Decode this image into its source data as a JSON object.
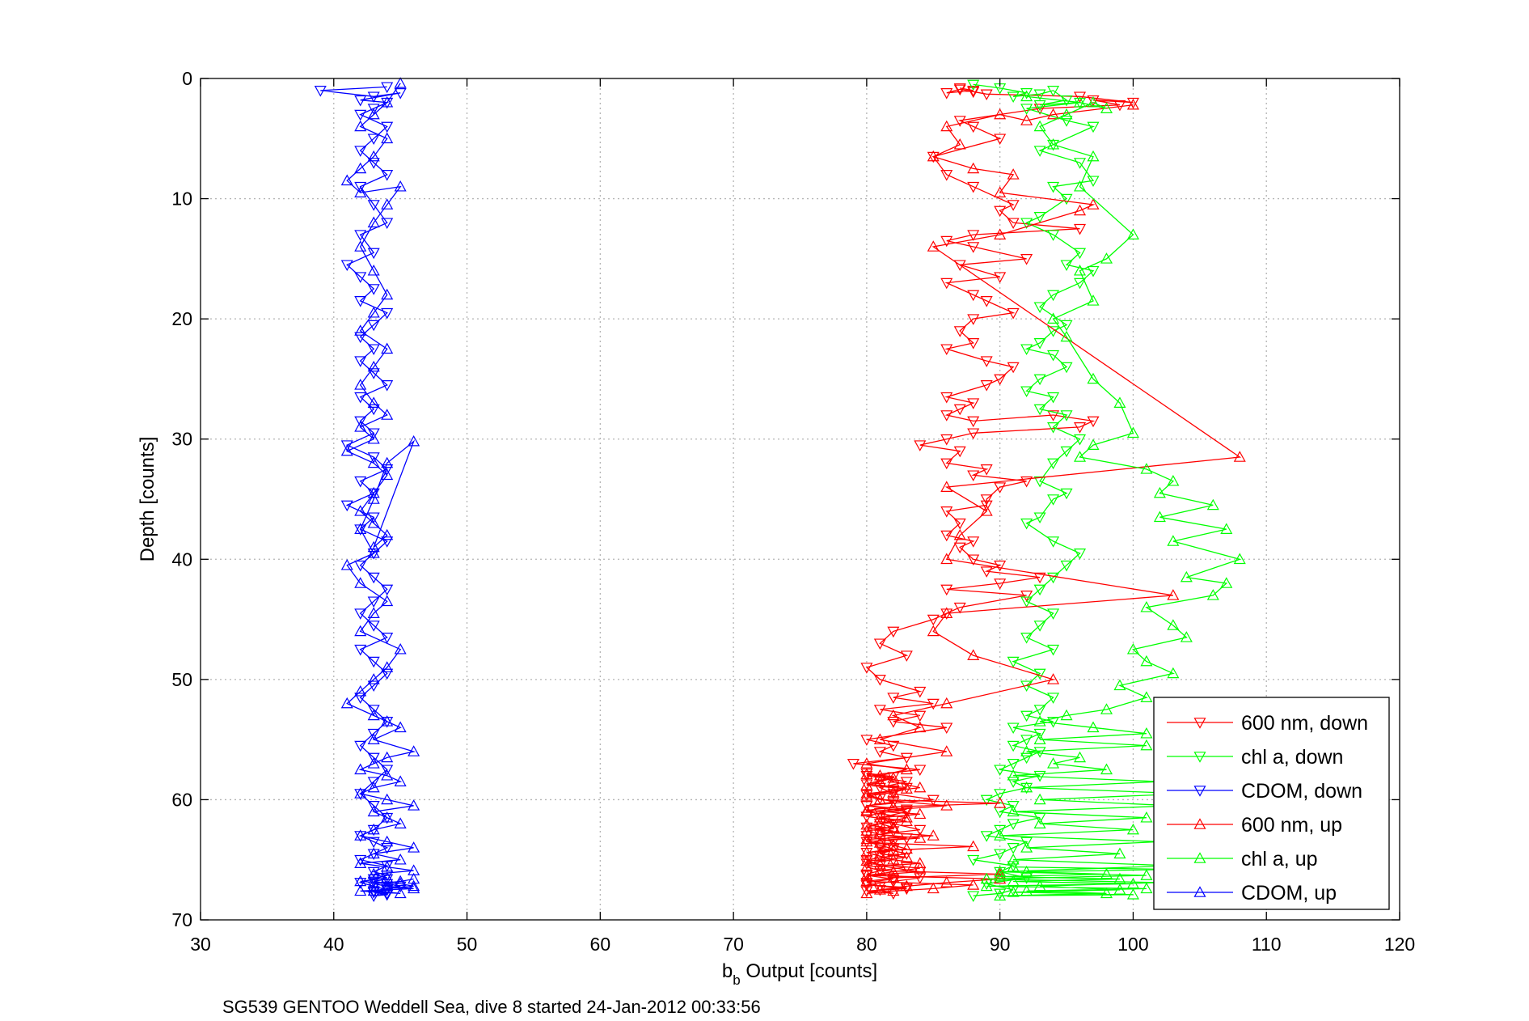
{
  "chart_data": {
    "type": "line",
    "title": "",
    "xlabel": "b_b Output [counts]",
    "xlabel_main": "b",
    "xlabel_sub": "b",
    "xlabel_rest": " Output [counts]",
    "ylabel": "Depth [counts]",
    "xlim": [
      30,
      120
    ],
    "ylim": [
      0,
      70
    ],
    "y_reversed": true,
    "xticks": [
      30,
      40,
      50,
      60,
      70,
      80,
      90,
      100,
      110,
      120
    ],
    "yticks": [
      0,
      10,
      20,
      30,
      40,
      50,
      60,
      70
    ],
    "grid": true,
    "legend_position": "lower-right",
    "series": [
      {
        "name": "600 nm, down",
        "color": "#ff0000",
        "marker": "triangle-down",
        "x": [
          87,
          88,
          86,
          87,
          88,
          89,
          96,
          100,
          97,
          99,
          93,
          87,
          88,
          90,
          85,
          86,
          88,
          91,
          90,
          91,
          96,
          88,
          86,
          88,
          92,
          87,
          90,
          86,
          88,
          89,
          91,
          88,
          87,
          88,
          86,
          89,
          91,
          90,
          89,
          86,
          88,
          87,
          86,
          88,
          94,
          97,
          96,
          88,
          86,
          84,
          87,
          86,
          89,
          88,
          92,
          90,
          89,
          89,
          86,
          87,
          86,
          88,
          87,
          88,
          90,
          89,
          93,
          90,
          86,
          92,
          87,
          86,
          85,
          82,
          81,
          83,
          80,
          81,
          84,
          82,
          85,
          81,
          84,
          82,
          86,
          80,
          82,
          81,
          83,
          79,
          84,
          80,
          83,
          81,
          82,
          85,
          80,
          83,
          81,
          82,
          84,
          80,
          82,
          81,
          83,
          80,
          81,
          84,
          80,
          82,
          80,
          81,
          83,
          80,
          82,
          81,
          83,
          80,
          82,
          84,
          80,
          81,
          83,
          80,
          82,
          81,
          80,
          82,
          81,
          80,
          83,
          81,
          82,
          80,
          81,
          82,
          80,
          81,
          83,
          80,
          82,
          81,
          80,
          82,
          83,
          80,
          81,
          82,
          80
        ],
        "y": [
          0.8,
          1.0,
          1.2,
          0.9,
          1.1,
          1.3,
          1.5,
          2.0,
          1.8,
          2.2,
          2.5,
          3.5,
          4.0,
          5.0,
          6.5,
          8.0,
          9.0,
          10.5,
          11.0,
          12.0,
          12.5,
          13.0,
          13.5,
          14.0,
          15.0,
          15.5,
          16.5,
          17.0,
          18.0,
          18.5,
          19.5,
          20.0,
          21.0,
          22.0,
          22.5,
          23.5,
          24.0,
          25.0,
          25.5,
          26.5,
          27.0,
          27.5,
          28.0,
          28.5,
          28.0,
          28.5,
          29.0,
          29.5,
          30.0,
          30.5,
          31.0,
          32.0,
          32.5,
          33.0,
          33.5,
          34.0,
          35.0,
          35.5,
          36.0,
          37.0,
          38.0,
          38.5,
          39.0,
          40.0,
          40.5,
          41.0,
          41.5,
          42.0,
          42.5,
          43.0,
          44.0,
          44.5,
          45.0,
          46.0,
          47.0,
          48.0,
          49.0,
          50.0,
          51.0,
          51.5,
          52.0,
          52.5,
          53.0,
          53.5,
          54.0,
          55.0,
          55.5,
          56.0,
          56.5,
          57.0,
          57.5,
          58.0,
          58.5,
          59.0,
          59.5,
          60.0,
          60.5,
          61.0,
          61.5,
          62.0,
          62.5,
          63.0,
          63.5,
          64.0,
          64.5,
          65.0,
          65.5,
          66.0,
          66.3,
          66.6,
          66.9,
          67.2,
          67.4,
          67.6,
          67.8,
          67.5,
          67.3,
          67.1,
          66.8,
          66.5,
          66.2,
          65.9,
          65.6,
          65.3,
          65.0,
          64.7,
          64.4,
          64.1,
          63.8,
          63.5,
          63.2,
          62.9,
          62.6,
          62.3,
          62.0,
          61.7,
          61.4,
          61.1,
          60.8,
          60.5,
          60.2,
          59.9,
          59.6,
          59.3,
          59.0,
          58.7,
          58.4,
          58.1,
          57.8
        ]
      },
      {
        "name": "chl a, down",
        "color": "#00ff00",
        "marker": "triangle-down",
        "x": [
          88,
          90,
          92,
          91,
          93,
          94,
          95,
          93,
          96,
          92,
          95,
          97,
          94,
          93,
          96,
          97,
          94,
          95,
          93,
          92,
          94,
          96,
          95,
          97,
          96,
          94,
          93,
          95,
          94,
          93,
          92,
          94,
          95,
          93,
          92,
          94,
          93,
          95,
          94,
          96,
          95,
          94,
          93,
          95,
          94,
          93,
          92,
          94,
          96,
          95,
          94,
          93,
          92,
          94,
          93,
          92,
          94,
          91,
          93,
          92,
          94,
          93,
          92,
          94,
          91,
          93,
          92,
          91,
          93,
          92,
          91,
          90,
          93,
          91,
          92,
          90,
          89,
          91,
          90,
          93,
          91,
          90,
          89,
          92,
          91,
          90,
          88,
          91,
          90,
          92,
          89,
          91,
          90,
          88
        ],
        "y": [
          0.5,
          0.8,
          1.2,
          1.5,
          1.3,
          1.0,
          1.8,
          2.2,
          2.0,
          2.5,
          3.5,
          4.0,
          5.5,
          6.0,
          7.0,
          8.5,
          9.0,
          10.0,
          11.5,
          12.0,
          13.0,
          14.5,
          15.5,
          16.0,
          17.0,
          18.0,
          19.0,
          20.5,
          21.0,
          22.0,
          22.5,
          23.0,
          24.0,
          25.0,
          26.0,
          26.5,
          27.5,
          28.0,
          29.0,
          30.0,
          31.0,
          32.0,
          33.5,
          34.5,
          35.0,
          36.5,
          37.0,
          38.5,
          39.5,
          40.5,
          41.5,
          42.5,
          43.5,
          44.5,
          45.5,
          46.5,
          47.5,
          48.5,
          49.5,
          50.5,
          51.5,
          52.5,
          53.0,
          53.5,
          54.0,
          54.5,
          55.0,
          55.5,
          56.0,
          56.5,
          57.0,
          57.5,
          58.0,
          58.5,
          59.0,
          59.5,
          60.0,
          60.5,
          61.0,
          61.5,
          62.0,
          62.5,
          63.0,
          63.5,
          64.0,
          64.5,
          65.0,
          65.5,
          66.0,
          66.5,
          67.0,
          67.5,
          67.8,
          68.0
        ]
      },
      {
        "name": "CDOM, down",
        "color": "#0000ff",
        "marker": "triangle-down",
        "x": [
          44,
          39,
          43,
          45,
          42,
          44,
          43,
          42,
          44,
          43,
          42,
          43,
          44,
          42,
          43,
          44,
          42,
          43,
          41,
          42,
          43,
          42,
          44,
          43,
          42,
          43,
          42,
          43,
          44,
          42,
          43,
          42,
          43,
          41,
          43,
          44,
          42,
          43,
          41,
          43,
          42,
          44,
          43,
          42,
          43,
          44,
          43,
          42,
          43,
          44,
          42,
          43,
          44,
          43,
          42,
          43,
          44,
          43,
          42,
          43,
          44,
          43,
          42,
          43,
          44,
          43,
          42,
          43,
          44,
          43,
          42,
          44,
          43,
          44,
          43,
          42,
          43,
          44,
          43,
          44,
          43,
          44,
          43,
          44,
          45,
          44,
          43,
          44
        ],
        "y": [
          0.7,
          1.0,
          1.5,
          1.2,
          1.8,
          2.0,
          2.5,
          3.0,
          4.0,
          5.0,
          6.0,
          7.0,
          8.0,
          9.0,
          10.5,
          12.0,
          13.0,
          14.5,
          15.5,
          16.5,
          17.5,
          18.5,
          19.5,
          20.5,
          21.5,
          22.5,
          23.5,
          24.5,
          25.5,
          26.5,
          27.5,
          28.5,
          29.5,
          30.5,
          31.5,
          32.5,
          33.5,
          34.5,
          35.5,
          36.5,
          37.5,
          38.5,
          39.5,
          40.5,
          41.5,
          42.5,
          43.5,
          44.5,
          45.5,
          46.5,
          47.5,
          48.5,
          49.5,
          50.5,
          51.5,
          52.5,
          53.5,
          54.5,
          55.5,
          56.5,
          57.5,
          58.5,
          59.5,
          60.5,
          61.5,
          62.5,
          63.0,
          63.5,
          64.0,
          64.5,
          65.0,
          65.5,
          66.0,
          66.3,
          66.6,
          66.9,
          67.2,
          67.5,
          67.7,
          67.9,
          68.0,
          67.8,
          67.6,
          67.4,
          67.2,
          67.0,
          66.8,
          66.6
        ]
      },
      {
        "name": "600 nm, up",
        "color": "#ff0000",
        "marker": "triangle-up",
        "x": [
          100,
          94,
          92,
          90,
          86,
          87,
          85,
          88,
          91,
          90,
          97,
          96,
          90,
          85,
          108,
          86,
          89,
          87,
          86,
          103,
          86,
          85,
          88,
          94,
          86,
          82,
          84,
          81,
          86,
          80,
          83,
          81,
          82,
          84,
          80,
          81,
          86,
          80,
          83,
          81,
          82,
          80,
          81,
          84,
          80,
          82,
          83,
          80,
          81,
          82,
          84,
          80,
          81,
          90,
          82,
          80,
          88,
          85,
          82,
          80,
          81,
          83,
          86,
          90,
          80,
          82,
          84,
          81,
          80,
          83,
          81,
          82,
          88,
          81,
          80,
          85,
          81,
          82,
          80,
          83,
          81,
          84,
          80,
          82,
          90,
          81,
          80,
          82,
          83,
          80,
          81,
          82,
          80
        ],
        "y": [
          2.2,
          3.0,
          3.5,
          3.0,
          4.0,
          5.5,
          6.5,
          7.5,
          8.0,
          9.5,
          10.5,
          11.0,
          13.0,
          14.0,
          31.5,
          34.0,
          36.0,
          38.0,
          40.0,
          43.0,
          44.5,
          46.0,
          48.0,
          50.0,
          52.0,
          53.0,
          54.0,
          55.0,
          56.0,
          57.0,
          57.5,
          58.0,
          58.5,
          59.0,
          59.5,
          60.0,
          60.5,
          61.0,
          61.5,
          62.0,
          62.3,
          62.6,
          62.9,
          63.2,
          63.5,
          63.8,
          64.1,
          64.4,
          64.7,
          65.0,
          65.3,
          65.6,
          65.9,
          66.2,
          66.5,
          66.8,
          67.1,
          67.4,
          67.6,
          67.8,
          67.5,
          67.2,
          66.9,
          66.6,
          66.3,
          66.0,
          65.7,
          65.4,
          65.1,
          64.8,
          64.5,
          64.2,
          63.9,
          63.6,
          63.3,
          63.0,
          62.7,
          62.4,
          62.1,
          61.8,
          61.5,
          61.2,
          60.9,
          60.6,
          60.3,
          60.0,
          59.7,
          59.4,
          59.1,
          58.8,
          58.5,
          58.2,
          57.9
        ]
      },
      {
        "name": "chl a, up",
        "color": "#00ff00",
        "marker": "triangle-up",
        "x": [
          92,
          96,
          98,
          97,
          95,
          93,
          94,
          97,
          96,
          100,
          98,
          96,
          97,
          94,
          95,
          97,
          99,
          100,
          97,
          96,
          101,
          103,
          102,
          106,
          102,
          107,
          103,
          108,
          104,
          107,
          106,
          101,
          103,
          104,
          100,
          101,
          103,
          99,
          101,
          98,
          95,
          93,
          97,
          101,
          93,
          101,
          92,
          96,
          94,
          98,
          91,
          102,
          92,
          104,
          93,
          103,
          91,
          101,
          93,
          100,
          90,
          102,
          92,
          99,
          91,
          103,
          90,
          101,
          89,
          102,
          93,
          99,
          91,
          100,
          90,
          98,
          92,
          101,
          89,
          100,
          91,
          99,
          90,
          98,
          92,
          103,
          91
        ],
        "y": [
          1.5,
          2.0,
          2.5,
          2.0,
          3.0,
          4.0,
          5.5,
          6.5,
          9.0,
          13.0,
          15.0,
          16.0,
          18.5,
          20.0,
          21.5,
          25.0,
          27.0,
          29.5,
          30.5,
          31.5,
          32.5,
          33.5,
          34.5,
          35.5,
          36.5,
          37.5,
          38.5,
          40.0,
          41.5,
          42.0,
          43.0,
          44.0,
          45.5,
          46.5,
          47.5,
          48.5,
          49.5,
          50.5,
          51.5,
          52.5,
          53.0,
          53.5,
          54.0,
          54.5,
          55.0,
          55.5,
          56.0,
          56.5,
          57.0,
          57.5,
          58.0,
          58.5,
          59.0,
          59.5,
          60.0,
          60.5,
          61.0,
          61.5,
          62.0,
          62.5,
          63.0,
          63.5,
          64.0,
          64.5,
          65.0,
          65.5,
          66.0,
          66.3,
          66.6,
          66.9,
          67.2,
          67.5,
          67.7,
          67.9,
          68.0,
          67.8,
          67.6,
          67.4,
          67.2,
          67.0,
          66.8,
          66.6,
          66.4,
          66.2,
          66.0,
          65.8,
          65.6
        ]
      },
      {
        "name": "CDOM, up",
        "color": "#0000ff",
        "marker": "triangle-up",
        "x": [
          45,
          44,
          43,
          42,
          44,
          43,
          42,
          41,
          42,
          45,
          44,
          43,
          42,
          43,
          44,
          43,
          42,
          44,
          43,
          42,
          43,
          44,
          42,
          43,
          41,
          43,
          44,
          43,
          42,
          43,
          44,
          43,
          46,
          44,
          43,
          42,
          43,
          41,
          42,
          44,
          43,
          42,
          45,
          44,
          43,
          42,
          41,
          43,
          44,
          45,
          43,
          46,
          44,
          43,
          42,
          44,
          45,
          43,
          42,
          44,
          46,
          43,
          44,
          45,
          43,
          42,
          44,
          46,
          43,
          45,
          42,
          44,
          46,
          43,
          44,
          42,
          45,
          46,
          44,
          43,
          45,
          42,
          46,
          44,
          43,
          45,
          46
        ],
        "y": [
          0.4,
          2.0,
          3.0,
          4.0,
          5.0,
          6.5,
          7.5,
          8.5,
          9.5,
          9.0,
          10.5,
          12.0,
          14.0,
          16.0,
          18.0,
          19.5,
          21.0,
          22.5,
          24.0,
          25.5,
          27.0,
          28.0,
          29.0,
          30.0,
          31.0,
          32.0,
          33.0,
          34.5,
          36.0,
          37.0,
          38.0,
          39.0,
          30.2,
          32.0,
          35.0,
          37.5,
          39.5,
          40.5,
          42.0,
          43.5,
          44.5,
          46.0,
          47.5,
          49.0,
          50.0,
          51.0,
          52.0,
          53.0,
          53.5,
          54.0,
          55.0,
          56.0,
          56.5,
          57.0,
          57.5,
          58.0,
          58.5,
          59.0,
          59.5,
          60.0,
          60.5,
          61.0,
          61.5,
          62.0,
          62.5,
          63.0,
          63.5,
          64.0,
          64.5,
          65.0,
          65.3,
          65.6,
          65.9,
          66.2,
          66.5,
          66.8,
          67.0,
          67.2,
          67.4,
          67.6,
          67.8,
          67.6,
          67.4,
          67.2,
          67.0,
          66.8,
          66.6
        ]
      }
    ]
  },
  "footer": "SG539 GENTOO Weddell Sea, dive 8 started 24-Jan-2012 00:33:56"
}
